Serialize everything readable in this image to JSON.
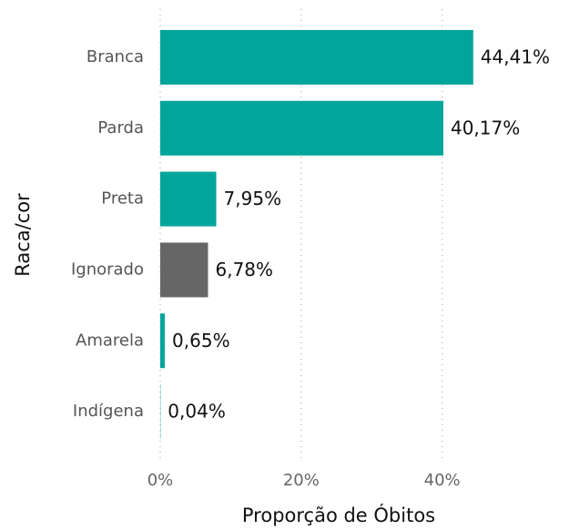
{
  "chart_data": {
    "type": "bar",
    "orientation": "horizontal",
    "categories": [
      "Branca",
      "Parda",
      "Preta",
      "Ignorado",
      "Amarela",
      "Indígena"
    ],
    "values": [
      44.41,
      40.17,
      7.95,
      6.78,
      0.65,
      0.04
    ],
    "value_labels": [
      "44,41%",
      "40,17%",
      "7,95%",
      "6,78%",
      "0,65%",
      "0,04%"
    ],
    "colors": [
      "#01a59a",
      "#01a59a",
      "#01a59a",
      "#666666",
      "#01a59a",
      "#01a59a"
    ],
    "xlim": [
      0,
      58
    ],
    "xticks": [
      {
        "value": 0,
        "label": "0%"
      },
      {
        "value": 20,
        "label": "20%"
      },
      {
        "value": 40,
        "label": "40%"
      }
    ],
    "xlabel": "Proporção de Óbitos",
    "ylabel": "Raca/cor",
    "grid": true
  }
}
